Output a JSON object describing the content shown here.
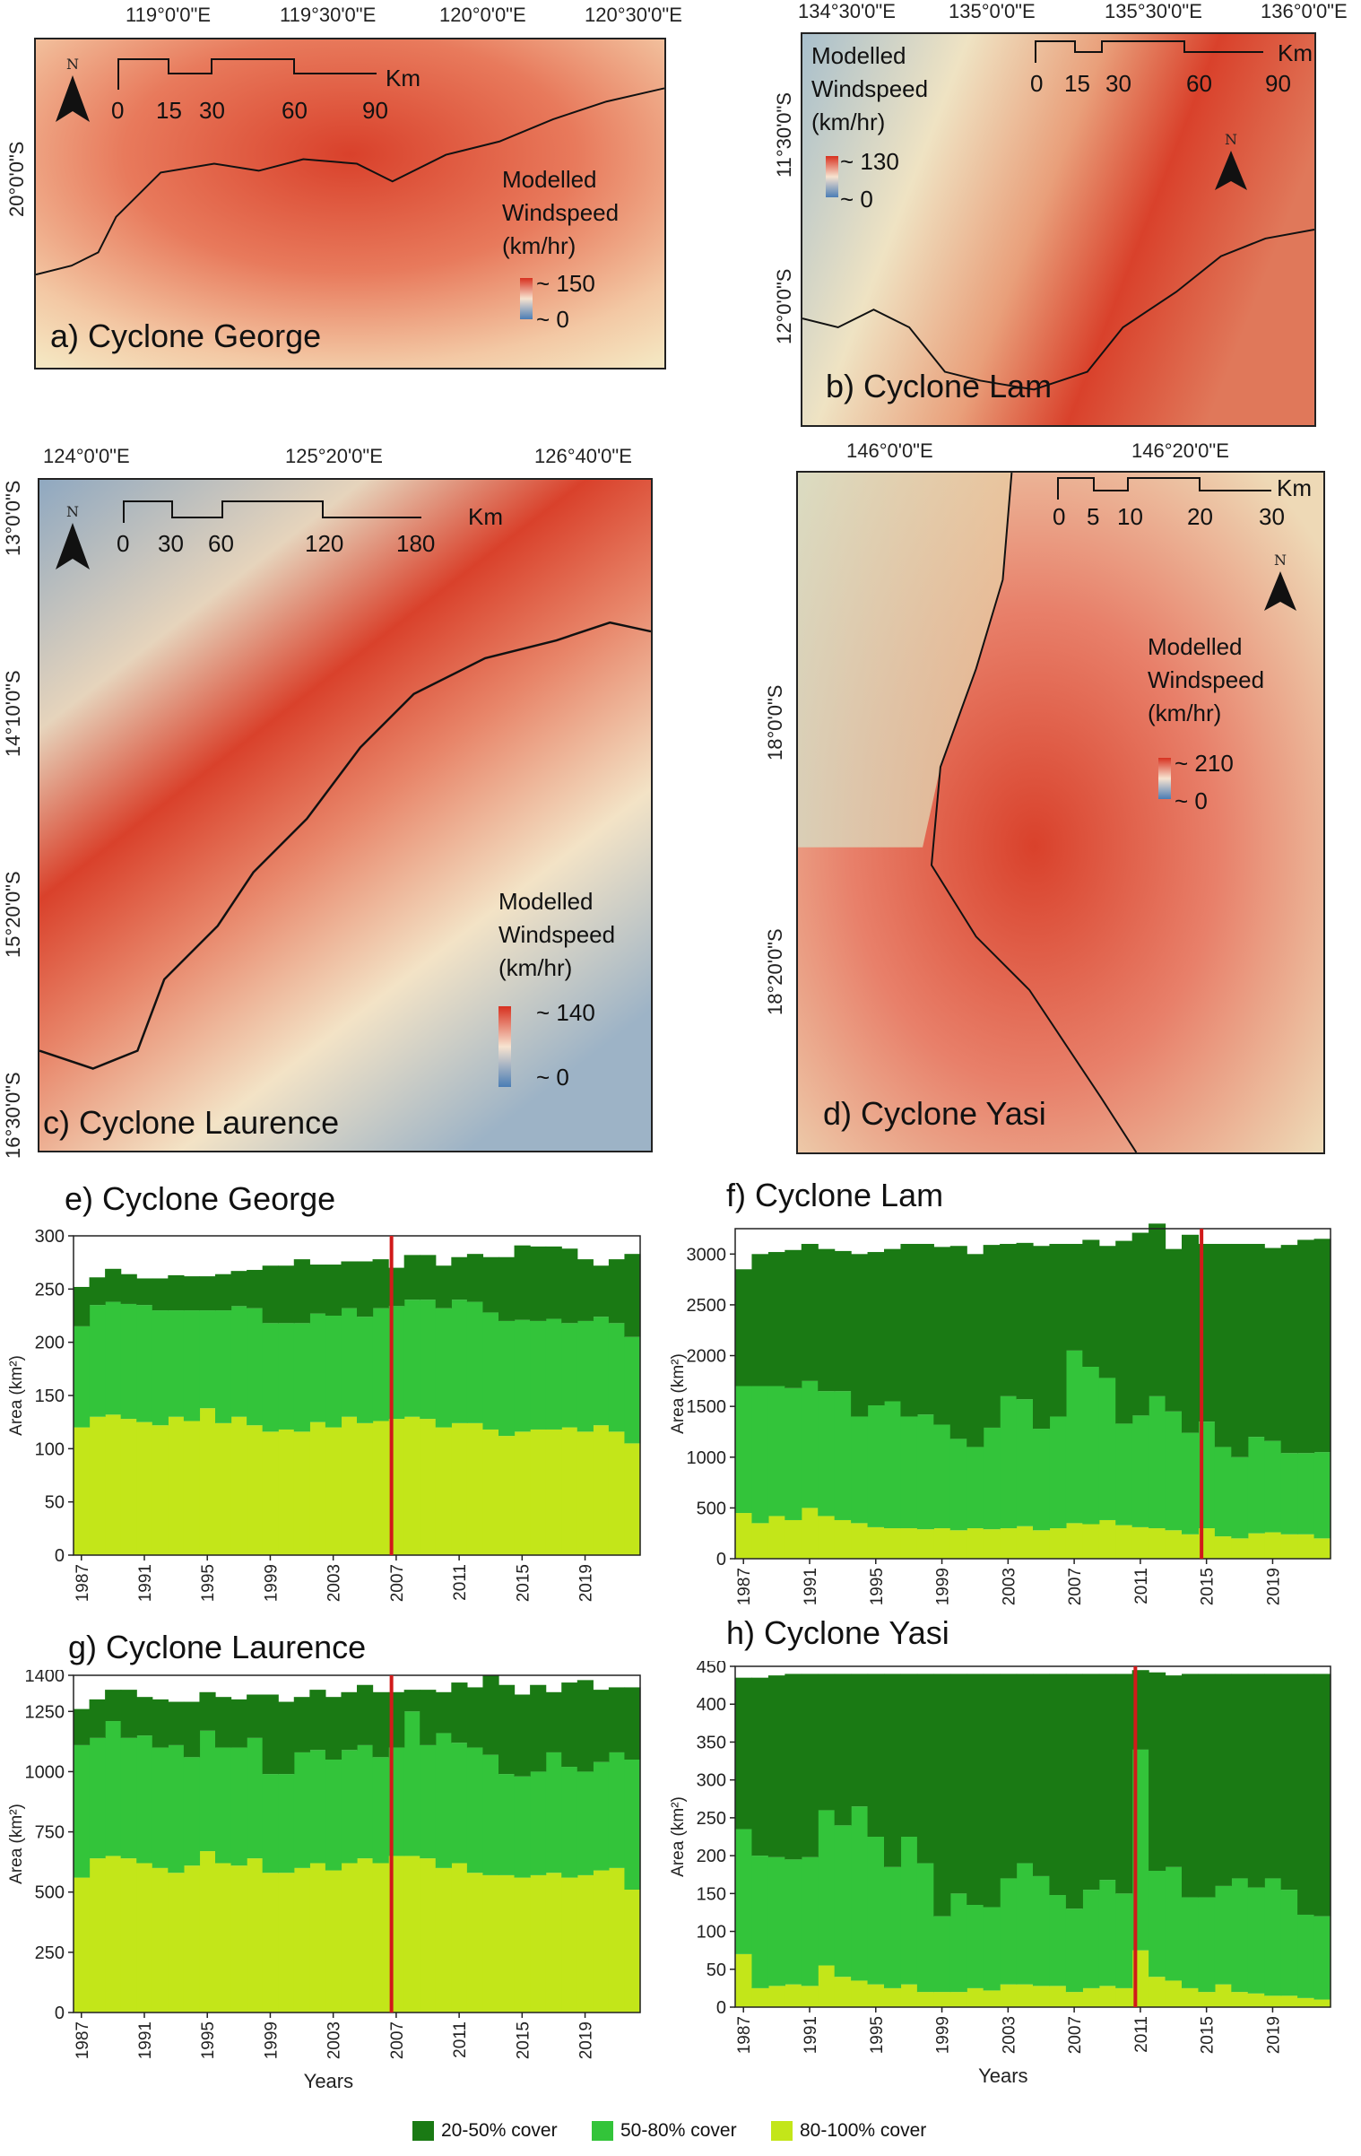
{
  "maps": [
    {
      "id": "a",
      "label": "a) Cyclone George",
      "top_coords": [
        "119°0'0\"E",
        "119°30'0\"E",
        "120°0'0\"E",
        "120°30'0\"E"
      ],
      "left_coords": [
        "20°0'0\"S"
      ],
      "scale_labels": [
        "0",
        "15",
        "30",
        "60",
        "90"
      ],
      "scale_unit": "Km",
      "legend_title": [
        "Modelled",
        "Windspeed",
        "(km/hr)"
      ],
      "legend_max": "~ 150",
      "legend_min": "~ 0"
    },
    {
      "id": "b",
      "label": "b) Cyclone Lam",
      "top_coords": [
        "134°30'0\"E",
        "135°0'0\"E",
        "135°30'0\"E",
        "136°0'0\"E"
      ],
      "left_coords": [
        "11°30'0\"S",
        "12°0'0\"S"
      ],
      "scale_labels": [
        "0",
        "15",
        "30",
        "60",
        "90"
      ],
      "scale_unit": "Km",
      "legend_title": [
        "Modelled",
        "Windspeed",
        "(km/hr)"
      ],
      "legend_max": "~ 130",
      "legend_min": "~ 0"
    },
    {
      "id": "c",
      "label": "c) Cyclone Laurence",
      "top_coords": [
        "124°0'0\"E",
        "125°20'0\"E",
        "126°40'0\"E"
      ],
      "left_coords": [
        "13°0'0\"S",
        "14°10'0\"S",
        "15°20'0\"S",
        "16°30'0\"S"
      ],
      "scale_labels": [
        "0",
        "30",
        "60",
        "120",
        "180"
      ],
      "scale_unit": "Km",
      "legend_title": [
        "Modelled",
        "Windspeed",
        "(km/hr)"
      ],
      "legend_max": "~ 140",
      "legend_min": "~ 0"
    },
    {
      "id": "d",
      "label": "d) Cyclone Yasi",
      "top_coords": [
        "146°0'0\"E",
        "146°20'0\"E"
      ],
      "left_coords": [
        "18°0'0\"S",
        "18°20'0\"S"
      ],
      "scale_labels": [
        "0",
        "5",
        "10",
        "20",
        "30"
      ],
      "scale_unit": "Km",
      "legend_title": [
        "Modelled",
        "Windspeed",
        "(km/hr)"
      ],
      "legend_max": "~ 210",
      "legend_min": "~ 0"
    }
  ],
  "north_symbol": "N",
  "colors": {
    "cover_20_50": "#1a7a14",
    "cover_50_80": "#33c43a",
    "cover_80_100": "#c3e619",
    "event_line": "#d11a1a",
    "wind_high": "#d7301f",
    "wind_low": "#4a7db5"
  },
  "x_axis_title": "Years",
  "y_axis_title": "Area (km²)",
  "legend": [
    {
      "label": "20-50% cover",
      "color": "#1a7a14"
    },
    {
      "label": "50-80% cover",
      "color": "#33c43a"
    },
    {
      "label": "80-100% cover",
      "color": "#c3e619"
    }
  ],
  "chart_data": [
    {
      "id": "e",
      "type": "area",
      "title": "e) Cyclone George",
      "ylabel": "Area (km²)",
      "ylim": [
        0,
        300
      ],
      "yticks": [
        0,
        50,
        100,
        150,
        200,
        250,
        300
      ],
      "xticks": [
        "1987",
        "1991",
        "1995",
        "1999",
        "2003",
        "2007",
        "2011",
        "2015",
        "2019"
      ],
      "x": [
        1987,
        1988,
        1989,
        1990,
        1991,
        1992,
        1993,
        1994,
        1995,
        1996,
        1997,
        1998,
        1999,
        2000,
        2001,
        2002,
        2003,
        2004,
        2005,
        2006,
        2007,
        2008,
        2009,
        2010,
        2011,
        2012,
        2013,
        2014,
        2015,
        2016,
        2017,
        2018,
        2019,
        2020,
        2021,
        2022
      ],
      "event_year": 2007,
      "series": [
        {
          "name": "80-100% cover",
          "values": [
            120,
            130,
            132,
            128,
            125,
            122,
            130,
            126,
            138,
            124,
            130,
            122,
            116,
            118,
            116,
            125,
            120,
            130,
            124,
            126,
            128,
            130,
            128,
            120,
            124,
            124,
            118,
            112,
            116,
            118,
            118,
            120,
            116,
            122,
            116,
            105
          ]
        },
        {
          "name": "50-80% cover",
          "values": [
            95,
            105,
            106,
            108,
            110,
            108,
            100,
            104,
            92,
            106,
            104,
            110,
            102,
            100,
            102,
            102,
            105,
            102,
            100,
            106,
            106,
            110,
            112,
            112,
            116,
            114,
            110,
            108,
            105,
            102,
            104,
            98,
            104,
            102,
            102,
            100
          ]
        },
        {
          "name": "20-50% cover",
          "values": [
            37,
            26,
            31,
            28,
            25,
            30,
            33,
            32,
            32,
            34,
            33,
            36,
            54,
            54,
            60,
            46,
            48,
            44,
            52,
            46,
            36,
            42,
            42,
            40,
            40,
            45,
            52,
            60,
            70,
            70,
            68,
            70,
            58,
            48,
            60,
            78
          ]
        }
      ]
    },
    {
      "id": "f",
      "type": "area",
      "title": "f) Cyclone Lam",
      "ylabel": "Area (km²)",
      "ylim": [
        0,
        3250
      ],
      "yticks": [
        0,
        500,
        1000,
        1500,
        2000,
        2500,
        3000
      ],
      "xticks": [
        "1987",
        "1991",
        "1995",
        "1999",
        "2003",
        "2007",
        "2011",
        "2015",
        "2019"
      ],
      "x": [
        1987,
        1988,
        1989,
        1990,
        1991,
        1992,
        1993,
        1994,
        1995,
        1996,
        1997,
        1998,
        1999,
        2000,
        2001,
        2002,
        2003,
        2004,
        2005,
        2006,
        2007,
        2008,
        2009,
        2010,
        2011,
        2012,
        2013,
        2014,
        2015,
        2016,
        2017,
        2018,
        2019,
        2020,
        2021,
        2022
      ],
      "event_year": 2015,
      "series": [
        {
          "name": "80-100% cover",
          "values": [
            450,
            350,
            420,
            380,
            500,
            420,
            380,
            350,
            310,
            300,
            300,
            290,
            300,
            280,
            300,
            290,
            300,
            320,
            280,
            300,
            350,
            340,
            380,
            330,
            310,
            300,
            280,
            240,
            300,
            220,
            200,
            250,
            260,
            240,
            240,
            200
          ]
        },
        {
          "name": "50-80% cover",
          "values": [
            1250,
            1350,
            1280,
            1300,
            1250,
            1230,
            1270,
            1050,
            1200,
            1250,
            1100,
            1130,
            1020,
            900,
            800,
            1000,
            1300,
            1250,
            1000,
            1100,
            1700,
            1550,
            1400,
            1000,
            1100,
            1300,
            1170,
            1000,
            1050,
            880,
            800,
            950,
            900,
            800,
            800,
            850
          ]
        },
        {
          "name": "20-50% cover",
          "values": [
            1150,
            1300,
            1320,
            1360,
            1350,
            1400,
            1380,
            1600,
            1510,
            1500,
            1700,
            1680,
            1750,
            1900,
            1900,
            1800,
            1500,
            1540,
            1800,
            1700,
            1050,
            1250,
            1300,
            1800,
            1800,
            1700,
            1600,
            1950,
            1750,
            2000,
            2100,
            1900,
            1900,
            2050,
            2100,
            2100
          ]
        }
      ]
    },
    {
      "id": "g",
      "type": "area",
      "title": "g) Cyclone Laurence",
      "ylabel": "Area (km²)",
      "ylim": [
        0,
        1400
      ],
      "yticks": [
        0,
        250,
        500,
        750,
        1000,
        1250,
        1400
      ],
      "xticks": [
        "1987",
        "1991",
        "1995",
        "1999",
        "2003",
        "2007",
        "2011",
        "2015",
        "2019"
      ],
      "x": [
        1987,
        1988,
        1989,
        1990,
        1991,
        1992,
        1993,
        1994,
        1995,
        1996,
        1997,
        1998,
        1999,
        2000,
        2001,
        2002,
        2003,
        2004,
        2005,
        2006,
        2007,
        2008,
        2009,
        2010,
        2011,
        2012,
        2013,
        2014,
        2015,
        2016,
        2017,
        2018,
        2019,
        2020,
        2021,
        2022
      ],
      "event_year": 2007,
      "series": [
        {
          "name": "80-100% cover",
          "values": [
            560,
            640,
            650,
            640,
            620,
            600,
            580,
            610,
            670,
            620,
            610,
            640,
            580,
            580,
            600,
            620,
            590,
            620,
            640,
            620,
            650,
            650,
            640,
            600,
            620,
            580,
            570,
            570,
            560,
            570,
            580,
            560,
            570,
            590,
            600,
            510
          ]
        },
        {
          "name": "50-80% cover",
          "values": [
            550,
            500,
            560,
            500,
            530,
            500,
            530,
            450,
            500,
            480,
            490,
            500,
            410,
            410,
            480,
            470,
            460,
            470,
            470,
            440,
            450,
            600,
            470,
            560,
            500,
            520,
            500,
            420,
            420,
            430,
            500,
            460,
            430,
            450,
            480,
            540
          ]
        },
        {
          "name": "20-50% cover",
          "values": [
            150,
            160,
            130,
            200,
            160,
            200,
            180,
            230,
            160,
            210,
            200,
            180,
            330,
            300,
            230,
            250,
            260,
            240,
            250,
            270,
            230,
            90,
            230,
            170,
            250,
            250,
            330,
            370,
            340,
            360,
            250,
            350,
            380,
            300,
            270,
            300
          ]
        }
      ]
    },
    {
      "id": "h",
      "type": "area",
      "title": "h) Cyclone Yasi",
      "ylabel": "Area (km²)",
      "ylim": [
        0,
        450
      ],
      "yticks": [
        0,
        50,
        100,
        150,
        200,
        250,
        300,
        350,
        400,
        450
      ],
      "xticks": [
        "1987",
        "1991",
        "1995",
        "1999",
        "2003",
        "2007",
        "2011",
        "2015",
        "2019"
      ],
      "x": [
        1987,
        1988,
        1989,
        1990,
        1991,
        1992,
        1993,
        1994,
        1995,
        1996,
        1997,
        1998,
        1999,
        2000,
        2001,
        2002,
        2003,
        2004,
        2005,
        2006,
        2007,
        2008,
        2009,
        2010,
        2011,
        2012,
        2013,
        2014,
        2015,
        2016,
        2017,
        2018,
        2019,
        2020,
        2021,
        2022
      ],
      "event_year": 2011,
      "series": [
        {
          "name": "80-100% cover",
          "values": [
            70,
            25,
            28,
            30,
            28,
            55,
            40,
            35,
            30,
            25,
            30,
            20,
            20,
            20,
            25,
            22,
            30,
            30,
            28,
            28,
            20,
            25,
            28,
            25,
            75,
            40,
            35,
            25,
            20,
            30,
            20,
            18,
            15,
            15,
            12,
            10
          ]
        },
        {
          "name": "50-80% cover",
          "values": [
            165,
            175,
            170,
            165,
            170,
            205,
            200,
            230,
            195,
            160,
            195,
            170,
            100,
            130,
            110,
            110,
            140,
            160,
            145,
            120,
            110,
            130,
            140,
            125,
            265,
            140,
            150,
            120,
            125,
            130,
            150,
            140,
            155,
            140,
            110,
            110
          ]
        },
        {
          "name": "20-50% cover",
          "values": [
            200,
            235,
            240,
            245,
            242,
            180,
            200,
            175,
            215,
            255,
            215,
            250,
            320,
            290,
            305,
            308,
            270,
            250,
            267,
            292,
            310,
            285,
            272,
            290,
            105,
            262,
            253,
            295,
            295,
            280,
            270,
            282,
            270,
            285,
            318,
            320
          ]
        }
      ]
    }
  ]
}
